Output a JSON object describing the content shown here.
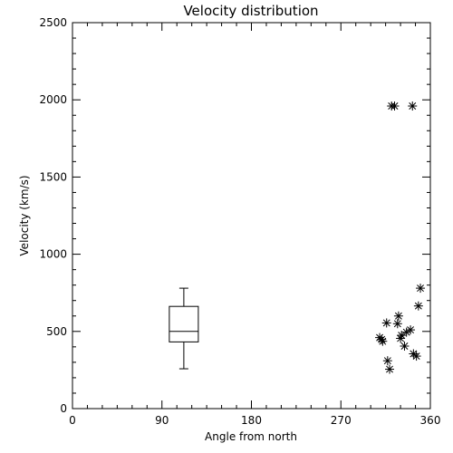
{
  "chart_data": {
    "type": "scatter",
    "title": "Velocity distribution",
    "xlabel": "Angle from north",
    "ylabel": "Velocity (km/s)",
    "xlim": [
      0,
      360
    ],
    "ylim": [
      0,
      2500
    ],
    "xticks": [
      0,
      90,
      180,
      270,
      360
    ],
    "yticks": [
      0,
      500,
      1000,
      1500,
      2000,
      2500
    ],
    "grid": false,
    "legend": "none",
    "marker": "asterisk",
    "color": "#000000",
    "box": {
      "x": 112,
      "min": 258,
      "q1": 432,
      "median": 500,
      "q3": 662,
      "max": 780
    },
    "points": [
      {
        "x": 321,
        "y": 1960
      },
      {
        "x": 324,
        "y": 1960
      },
      {
        "x": 342,
        "y": 1960
      },
      {
        "x": 350,
        "y": 780
      },
      {
        "x": 348,
        "y": 665
      },
      {
        "x": 328,
        "y": 600
      },
      {
        "x": 316,
        "y": 555
      },
      {
        "x": 327,
        "y": 550
      },
      {
        "x": 340,
        "y": 510
      },
      {
        "x": 336,
        "y": 495
      },
      {
        "x": 331,
        "y": 475
      },
      {
        "x": 330,
        "y": 455
      },
      {
        "x": 309,
        "y": 460
      },
      {
        "x": 311,
        "y": 448
      },
      {
        "x": 312,
        "y": 436
      },
      {
        "x": 334,
        "y": 405
      },
      {
        "x": 343,
        "y": 355
      },
      {
        "x": 346,
        "y": 340
      },
      {
        "x": 317,
        "y": 310
      },
      {
        "x": 319,
        "y": 255
      }
    ]
  }
}
